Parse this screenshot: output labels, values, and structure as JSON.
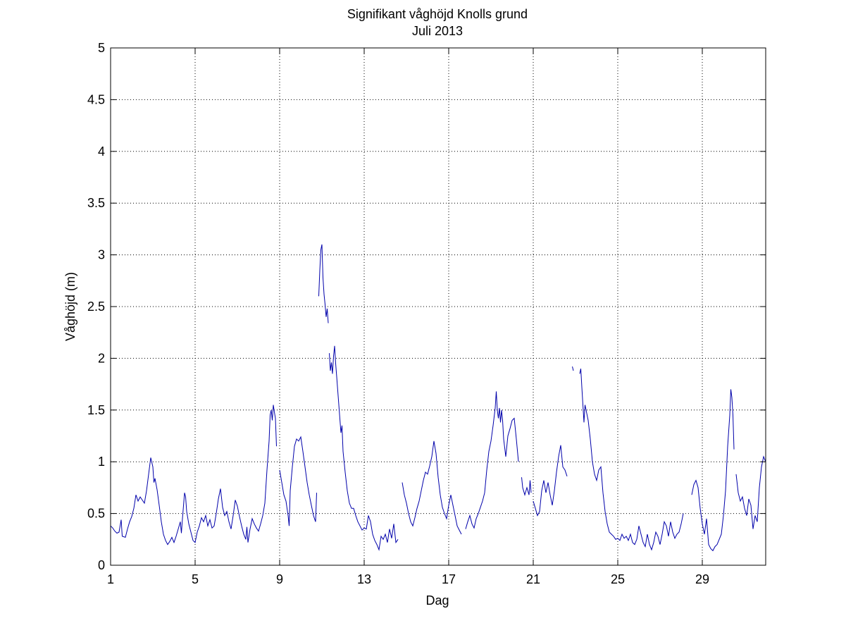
{
  "chart_data": {
    "type": "line",
    "title": "Signifikant våghöjd Knolls grund",
    "subtitle": "Juli 2013",
    "xlabel": "Dag",
    "ylabel": "Våghöjd (m)",
    "xlim": [
      1,
      32
    ],
    "ylim": [
      0,
      5
    ],
    "xticks": [
      1,
      5,
      9,
      13,
      17,
      21,
      25,
      29
    ],
    "yticks": [
      0,
      0.5,
      1,
      1.5,
      2,
      2.5,
      3,
      3.5,
      4,
      4.5,
      5
    ],
    "xtick_labels": [
      "1",
      "5",
      "9",
      "13",
      "17",
      "21",
      "25",
      "29"
    ],
    "ytick_labels": [
      "0",
      "0.5",
      "1",
      "1.5",
      "2",
      "2.5",
      "3",
      "3.5",
      "4",
      "4.5",
      "5"
    ],
    "grid": true,
    "grid_style": "dotted",
    "line_color": "#0000aa",
    "segments": [
      [
        [
          1.0,
          0.38
        ],
        [
          1.1,
          0.36
        ],
        [
          1.2,
          0.33
        ],
        [
          1.3,
          0.31
        ],
        [
          1.4,
          0.32
        ],
        [
          1.5,
          0.44
        ],
        [
          1.55,
          0.28
        ],
        [
          1.7,
          0.27
        ],
        [
          1.8,
          0.35
        ],
        [
          1.9,
          0.42
        ],
        [
          2.0,
          0.47
        ],
        [
          2.1,
          0.55
        ],
        [
          2.2,
          0.68
        ],
        [
          2.3,
          0.62
        ],
        [
          2.4,
          0.66
        ],
        [
          2.5,
          0.63
        ],
        [
          2.6,
          0.6
        ],
        [
          2.7,
          0.72
        ],
        [
          2.8,
          0.88
        ],
        [
          2.9,
          1.04
        ],
        [
          3.0,
          0.95
        ],
        [
          3.05,
          0.8
        ],
        [
          3.1,
          0.84
        ],
        [
          3.2,
          0.73
        ],
        [
          3.3,
          0.58
        ],
        [
          3.4,
          0.42
        ],
        [
          3.5,
          0.3
        ],
        [
          3.6,
          0.24
        ],
        [
          3.7,
          0.2
        ],
        [
          3.8,
          0.23
        ],
        [
          3.9,
          0.27
        ],
        [
          4.0,
          0.22
        ],
        [
          4.1,
          0.28
        ],
        [
          4.2,
          0.35
        ],
        [
          4.3,
          0.42
        ],
        [
          4.35,
          0.31
        ],
        [
          4.4,
          0.45
        ],
        [
          4.5,
          0.7
        ],
        [
          4.55,
          0.66
        ],
        [
          4.6,
          0.52
        ],
        [
          4.7,
          0.4
        ],
        [
          4.8,
          0.32
        ],
        [
          4.9,
          0.24
        ],
        [
          5.0,
          0.22
        ],
        [
          5.1,
          0.32
        ],
        [
          5.2,
          0.38
        ],
        [
          5.3,
          0.46
        ],
        [
          5.4,
          0.42
        ],
        [
          5.5,
          0.48
        ],
        [
          5.6,
          0.38
        ],
        [
          5.7,
          0.44
        ],
        [
          5.8,
          0.36
        ],
        [
          5.9,
          0.38
        ],
        [
          6.0,
          0.5
        ],
        [
          6.1,
          0.64
        ],
        [
          6.2,
          0.74
        ],
        [
          6.3,
          0.56
        ],
        [
          6.4,
          0.48
        ],
        [
          6.5,
          0.52
        ],
        [
          6.6,
          0.42
        ],
        [
          6.7,
          0.35
        ],
        [
          6.8,
          0.48
        ],
        [
          6.9,
          0.63
        ],
        [
          7.0,
          0.57
        ],
        [
          7.1,
          0.47
        ],
        [
          7.2,
          0.38
        ],
        [
          7.3,
          0.3
        ],
        [
          7.4,
          0.25
        ],
        [
          7.45,
          0.37
        ],
        [
          7.5,
          0.22
        ],
        [
          7.6,
          0.35
        ],
        [
          7.7,
          0.45
        ],
        [
          7.8,
          0.4
        ],
        [
          7.9,
          0.36
        ],
        [
          8.0,
          0.33
        ],
        [
          8.1,
          0.4
        ],
        [
          8.2,
          0.48
        ],
        [
          8.3,
          0.6
        ],
        [
          8.4,
          0.92
        ],
        [
          8.5,
          1.2
        ],
        [
          8.55,
          1.45
        ],
        [
          8.6,
          1.5
        ],
        [
          8.65,
          1.4
        ],
        [
          8.7,
          1.55
        ],
        [
          8.75,
          1.48
        ],
        [
          8.8,
          1.42
        ],
        [
          8.85,
          1.15
        ]
      ],
      [
        [
          9.0,
          0.92
        ],
        [
          9.1,
          0.8
        ],
        [
          9.2,
          0.68
        ],
        [
          9.3,
          0.62
        ],
        [
          9.4,
          0.48
        ],
        [
          9.45,
          0.38
        ],
        [
          9.5,
          0.72
        ],
        [
          9.6,
          0.95
        ],
        [
          9.7,
          1.15
        ],
        [
          9.8,
          1.22
        ],
        [
          9.9,
          1.2
        ],
        [
          10.0,
          1.24
        ],
        [
          10.1,
          1.1
        ],
        [
          10.2,
          0.95
        ],
        [
          10.3,
          0.8
        ],
        [
          10.4,
          0.68
        ],
        [
          10.5,
          0.58
        ],
        [
          10.6,
          0.48
        ],
        [
          10.7,
          0.42
        ],
        [
          10.75,
          0.7
        ]
      ],
      [
        [
          10.85,
          2.6
        ],
        [
          10.9,
          2.85
        ],
        [
          10.95,
          3.05
        ],
        [
          11.0,
          3.1
        ],
        [
          11.05,
          2.78
        ],
        [
          11.1,
          2.62
        ],
        [
          11.15,
          2.52
        ],
        [
          11.2,
          2.4
        ],
        [
          11.25,
          2.48
        ],
        [
          11.3,
          2.34
        ]
      ],
      [
        [
          11.35,
          2.05
        ],
        [
          11.4,
          1.88
        ],
        [
          11.45,
          1.96
        ],
        [
          11.5,
          1.85
        ],
        [
          11.55,
          2.02
        ],
        [
          11.6,
          2.12
        ],
        [
          11.65,
          1.95
        ],
        [
          11.7,
          1.82
        ],
        [
          11.8,
          1.55
        ],
        [
          11.9,
          1.28
        ],
        [
          11.95,
          1.35
        ],
        [
          12.0,
          1.1
        ],
        [
          12.1,
          0.9
        ],
        [
          12.2,
          0.72
        ],
        [
          12.3,
          0.6
        ],
        [
          12.4,
          0.55
        ],
        [
          12.5,
          0.55
        ],
        [
          12.6,
          0.48
        ],
        [
          12.7,
          0.42
        ],
        [
          12.8,
          0.38
        ],
        [
          12.9,
          0.34
        ],
        [
          13.0,
          0.36
        ],
        [
          13.1,
          0.35
        ],
        [
          13.2,
          0.48
        ],
        [
          13.3,
          0.42
        ],
        [
          13.4,
          0.3
        ],
        [
          13.5,
          0.24
        ],
        [
          13.6,
          0.2
        ],
        [
          13.7,
          0.15
        ],
        [
          13.8,
          0.28
        ],
        [
          13.9,
          0.25
        ],
        [
          14.0,
          0.3
        ],
        [
          14.1,
          0.22
        ],
        [
          14.2,
          0.35
        ],
        [
          14.3,
          0.26
        ],
        [
          14.4,
          0.4
        ],
        [
          14.5,
          0.22
        ],
        [
          14.6,
          0.25
        ]
      ],
      [
        [
          14.8,
          0.8
        ],
        [
          14.9,
          0.68
        ],
        [
          15.0,
          0.6
        ],
        [
          15.1,
          0.5
        ],
        [
          15.2,
          0.42
        ],
        [
          15.3,
          0.38
        ],
        [
          15.4,
          0.46
        ],
        [
          15.5,
          0.55
        ],
        [
          15.6,
          0.62
        ],
        [
          15.7,
          0.72
        ],
        [
          15.8,
          0.82
        ],
        [
          15.9,
          0.9
        ],
        [
          16.0,
          0.88
        ],
        [
          16.1,
          0.96
        ],
        [
          16.2,
          1.05
        ],
        [
          16.3,
          1.2
        ],
        [
          16.4,
          1.08
        ],
        [
          16.5,
          0.85
        ],
        [
          16.6,
          0.68
        ],
        [
          16.7,
          0.56
        ],
        [
          16.8,
          0.5
        ],
        [
          16.9,
          0.45
        ],
        [
          17.0,
          0.58
        ],
        [
          17.1,
          0.68
        ],
        [
          17.2,
          0.58
        ],
        [
          17.3,
          0.48
        ],
        [
          17.4,
          0.38
        ],
        [
          17.5,
          0.34
        ],
        [
          17.6,
          0.3
        ]
      ],
      [
        [
          17.8,
          0.35
        ],
        [
          17.9,
          0.42
        ],
        [
          18.0,
          0.48
        ],
        [
          18.1,
          0.4
        ],
        [
          18.2,
          0.36
        ],
        [
          18.3,
          0.45
        ],
        [
          18.4,
          0.5
        ],
        [
          18.5,
          0.56
        ],
        [
          18.6,
          0.62
        ],
        [
          18.7,
          0.7
        ],
        [
          18.8,
          0.92
        ],
        [
          18.9,
          1.1
        ],
        [
          19.0,
          1.2
        ],
        [
          19.1,
          1.35
        ],
        [
          19.2,
          1.52
        ],
        [
          19.25,
          1.68
        ],
        [
          19.3,
          1.5
        ],
        [
          19.35,
          1.42
        ],
        [
          19.4,
          1.52
        ],
        [
          19.45,
          1.38
        ],
        [
          19.5,
          1.5
        ],
        [
          19.55,
          1.4
        ],
        [
          19.6,
          1.22
        ],
        [
          19.7,
          1.05
        ],
        [
          19.8,
          1.25
        ],
        [
          19.9,
          1.32
        ],
        [
          20.0,
          1.4
        ],
        [
          20.1,
          1.42
        ],
        [
          20.2,
          1.22
        ],
        [
          20.3,
          1.0
        ]
      ],
      [
        [
          20.45,
          0.85
        ],
        [
          20.5,
          0.75
        ],
        [
          20.6,
          0.68
        ],
        [
          20.7,
          0.75
        ],
        [
          20.8,
          0.68
        ],
        [
          20.85,
          0.82
        ],
        [
          20.9,
          0.7
        ]
      ],
      [
        [
          21.0,
          0.62
        ],
        [
          21.1,
          0.55
        ],
        [
          21.2,
          0.48
        ],
        [
          21.3,
          0.52
        ],
        [
          21.4,
          0.72
        ],
        [
          21.5,
          0.82
        ],
        [
          21.6,
          0.7
        ],
        [
          21.7,
          0.8
        ],
        [
          21.8,
          0.68
        ],
        [
          21.9,
          0.58
        ],
        [
          22.0,
          0.72
        ],
        [
          22.1,
          0.9
        ],
        [
          22.2,
          1.05
        ],
        [
          22.3,
          1.16
        ],
        [
          22.4,
          0.95
        ],
        [
          22.5,
          0.92
        ],
        [
          22.6,
          0.86
        ]
      ],
      [
        [
          22.85,
          1.92
        ],
        [
          22.9,
          1.88
        ]
      ],
      [
        [
          23.2,
          1.85
        ],
        [
          23.25,
          1.9
        ],
        [
          23.3,
          1.72
        ],
        [
          23.35,
          1.55
        ],
        [
          23.4,
          1.38
        ],
        [
          23.45,
          1.55
        ],
        [
          23.5,
          1.5
        ],
        [
          23.6,
          1.4
        ],
        [
          23.7,
          1.22
        ],
        [
          23.8,
          1.0
        ],
        [
          23.9,
          0.88
        ],
        [
          24.0,
          0.82
        ],
        [
          24.1,
          0.92
        ],
        [
          24.2,
          0.95
        ],
        [
          24.3,
          0.7
        ],
        [
          24.4,
          0.52
        ],
        [
          24.5,
          0.4
        ],
        [
          24.6,
          0.32
        ],
        [
          24.7,
          0.3
        ],
        [
          24.8,
          0.28
        ],
        [
          24.9,
          0.25
        ],
        [
          25.0,
          0.26
        ],
        [
          25.1,
          0.24
        ],
        [
          25.2,
          0.3
        ],
        [
          25.3,
          0.26
        ],
        [
          25.4,
          0.28
        ],
        [
          25.5,
          0.24
        ],
        [
          25.6,
          0.3
        ],
        [
          25.7,
          0.22
        ],
        [
          25.8,
          0.2
        ],
        [
          25.9,
          0.25
        ],
        [
          26.0,
          0.38
        ],
        [
          26.1,
          0.3
        ],
        [
          26.2,
          0.22
        ],
        [
          26.3,
          0.18
        ],
        [
          26.4,
          0.3
        ],
        [
          26.5,
          0.2
        ],
        [
          26.6,
          0.15
        ],
        [
          26.7,
          0.22
        ],
        [
          26.8,
          0.32
        ],
        [
          26.9,
          0.28
        ],
        [
          27.0,
          0.2
        ],
        [
          27.1,
          0.3
        ],
        [
          27.2,
          0.42
        ],
        [
          27.3,
          0.38
        ],
        [
          27.4,
          0.28
        ],
        [
          27.5,
          0.42
        ],
        [
          27.6,
          0.32
        ],
        [
          27.7,
          0.26
        ],
        [
          27.8,
          0.3
        ],
        [
          27.9,
          0.32
        ],
        [
          28.0,
          0.4
        ],
        [
          28.1,
          0.5
        ]
      ],
      [
        [
          28.5,
          0.68
        ],
        [
          28.6,
          0.78
        ],
        [
          28.7,
          0.82
        ],
        [
          28.8,
          0.75
        ],
        [
          28.9,
          0.55
        ],
        [
          29.0,
          0.4
        ],
        [
          29.1,
          0.3
        ],
        [
          29.2,
          0.45
        ],
        [
          29.3,
          0.2
        ],
        [
          29.4,
          0.16
        ],
        [
          29.5,
          0.14
        ],
        [
          29.6,
          0.18
        ],
        [
          29.7,
          0.2
        ],
        [
          29.8,
          0.25
        ],
        [
          29.9,
          0.3
        ],
        [
          30.0,
          0.48
        ],
        [
          30.1,
          0.72
        ],
        [
          30.2,
          1.15
        ],
        [
          30.3,
          1.45
        ],
        [
          30.35,
          1.7
        ],
        [
          30.4,
          1.62
        ],
        [
          30.45,
          1.45
        ],
        [
          30.5,
          1.12
        ]
      ],
      [
        [
          30.6,
          0.88
        ],
        [
          30.7,
          0.7
        ],
        [
          30.8,
          0.62
        ],
        [
          30.9,
          0.66
        ],
        [
          31.0,
          0.55
        ],
        [
          31.1,
          0.48
        ],
        [
          31.2,
          0.64
        ],
        [
          31.3,
          0.58
        ],
        [
          31.4,
          0.35
        ],
        [
          31.5,
          0.48
        ],
        [
          31.6,
          0.42
        ],
        [
          31.7,
          0.75
        ],
        [
          31.8,
          0.95
        ],
        [
          31.9,
          1.05
        ],
        [
          32.0,
          1.0
        ]
      ]
    ]
  }
}
